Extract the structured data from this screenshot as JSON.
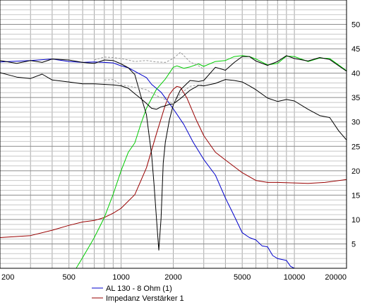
{
  "chart_data": {
    "type": "line",
    "xscale": "log",
    "xlim": [
      200,
      20000
    ],
    "ylim": [
      0,
      55
    ],
    "grid": true,
    "legend_position": "bottom-center",
    "x_tick_labels": [
      "200",
      "500",
      "1000",
      "2000",
      "5000",
      "10000",
      "20000"
    ],
    "x_tick_values": [
      200,
      500,
      1000,
      2000,
      5000,
      10000,
      20000
    ],
    "y_tick_labels": [
      "5",
      "10",
      "15",
      "20",
      "25",
      "30",
      "35",
      "40",
      "45",
      "50"
    ],
    "y_tick_values": [
      5,
      10,
      15,
      20,
      25,
      30,
      35,
      40,
      45,
      50
    ],
    "series": [
      {
        "name": "AL 130 - 8 Ohm (1)",
        "color": "#0000cc",
        "x": [
          200,
          300,
          400,
          500,
          600,
          700,
          800,
          900,
          1000,
          1100,
          1200,
          1300,
          1400,
          1500,
          1700,
          2000,
          2300,
          2600,
          3000,
          3500,
          4000,
          4500,
          5000,
          5500,
          6000,
          6500,
          7000,
          7500,
          8000,
          9000,
          9500,
          10000,
          12000,
          15000,
          20000
        ],
        "values": [
          42.3,
          42.6,
          42.9,
          42.4,
          42.2,
          42.3,
          42.2,
          42.1,
          41.5,
          41.1,
          40.4,
          39.7,
          39.1,
          37.7,
          36.1,
          32.7,
          29.5,
          25.9,
          22.3,
          19.1,
          14.4,
          10.7,
          7.3,
          6.3,
          5.8,
          4.6,
          4.4,
          2.6,
          2.0,
          1.6,
          0.4,
          0.0,
          0.0,
          0.0,
          0.0
        ]
      },
      {
        "name": "Impedanz Verstärker 1",
        "color": "#990000",
        "x": [
          200,
          300,
          400,
          500,
          600,
          700,
          800,
          900,
          1000,
          1200,
          1400,
          1600,
          1800,
          1900,
          2000,
          2100,
          2200,
          2400,
          2700,
          3000,
          3500,
          4000,
          5000,
          6000,
          7000,
          8000,
          10000,
          12000,
          15000,
          20000
        ],
        "values": [
          6.3,
          6.7,
          7.8,
          8.8,
          9.5,
          9.8,
          10.4,
          11.3,
          12.3,
          15.1,
          20.6,
          27.6,
          33.5,
          35.6,
          36.7,
          37.3,
          37.1,
          34.9,
          30.6,
          27.2,
          23.8,
          22.2,
          19.6,
          18.0,
          17.6,
          17.6,
          17.5,
          17.4,
          17.6,
          18.2
        ]
      },
      {
        "name": "",
        "color": "#00cc00",
        "x": [
          200,
          550,
          600,
          700,
          800,
          900,
          1000,
          1100,
          1200,
          1300,
          1400,
          1600,
          1800,
          2000,
          2100,
          2300,
          2500,
          2800,
          3000,
          3500,
          4000,
          4500,
          5000,
          5500,
          6000,
          7000,
          8000,
          9000,
          10000,
          12000,
          14000,
          16000,
          20000
        ],
        "values": [
          0.0,
          0.0,
          2.2,
          6.3,
          10.4,
          15.2,
          20.0,
          23.8,
          25.7,
          29.6,
          32.8,
          36.7,
          38.8,
          41.2,
          41.5,
          41.0,
          41.3,
          41.9,
          41.4,
          42.4,
          42.6,
          43.4,
          43.6,
          43.4,
          42.9,
          41.7,
          42.0,
          43.5,
          43.4,
          42.4,
          43.1,
          43.0,
          40.5
        ]
      },
      {
        "name": "",
        "color": "#000000",
        "x": [
          200,
          250,
          300,
          350,
          400,
          500,
          600,
          700,
          800,
          900,
          1000,
          1100,
          1200,
          1300,
          1400,
          1450,
          1500,
          1550,
          1600,
          1650,
          1700,
          1750,
          1800,
          1900,
          2000,
          2200,
          2500,
          2800,
          3000,
          3500,
          4000,
          4500,
          5000,
          5500,
          6000,
          7000,
          8000,
          9000,
          10000,
          12000,
          14000,
          16000,
          20000
        ],
        "values": [
          42.6,
          42.0,
          42.6,
          42.2,
          42.9,
          42.7,
          42.2,
          42.0,
          42.7,
          42.6,
          41.9,
          41.1,
          39.7,
          35.3,
          31.5,
          27.3,
          23.3,
          17.1,
          10.2,
          3.7,
          10.2,
          21.6,
          25.9,
          30.4,
          33.5,
          36.6,
          38.5,
          38.3,
          38.5,
          41.2,
          40.6,
          42.2,
          43.4,
          43.4,
          42.5,
          41.6,
          42.4,
          43.6,
          43.0,
          42.5,
          43.2,
          42.8,
          40.4
        ]
      },
      {
        "name": "",
        "color": "#000000",
        "x": [
          200,
          250,
          300,
          350,
          400,
          500,
          600,
          700,
          800,
          900,
          1000,
          1100,
          1200,
          1300,
          1400,
          1500,
          1600,
          1700,
          1800,
          1900,
          2000,
          2200,
          2500,
          2800,
          3000,
          3500,
          4000,
          4500,
          5000,
          5500,
          6000,
          7000,
          8000,
          9000,
          10000,
          12000,
          14000,
          16000,
          18000,
          20000
        ],
        "values": [
          40.1,
          39.2,
          38.9,
          39.8,
          38.6,
          38.2,
          37.8,
          37.8,
          37.7,
          37.6,
          37.4,
          36.9,
          35.8,
          34.8,
          33.8,
          32.8,
          32.6,
          33.1,
          33.3,
          33.6,
          33.7,
          34.8,
          36.5,
          37.5,
          37.4,
          37.9,
          38.7,
          38.5,
          38.2,
          37.4,
          36.6,
          34.9,
          34.2,
          34.6,
          34.3,
          32.6,
          31.3,
          30.9,
          28.2,
          26.3
        ]
      },
      {
        "name": "",
        "color": "#999999",
        "dashed": true,
        "x": [
          700,
          800,
          900,
          1000,
          1200,
          1400,
          1600,
          1800,
          2000,
          2200,
          2500,
          2800,
          3000
        ],
        "values": [
          42.7,
          43.3,
          43.2,
          43.0,
          42.4,
          42.6,
          42.3,
          42.2,
          43.0,
          44.3,
          42.3,
          41.5,
          40.8
        ]
      },
      {
        "name": "",
        "color": "#999999",
        "dashed": true,
        "x": [
          800,
          900,
          1000,
          1200,
          1400,
          1600,
          1800,
          2000,
          2200,
          2500,
          2800,
          3000
        ],
        "values": [
          38.6,
          38.7,
          37.6,
          37.1,
          36.6,
          35.4,
          34.6,
          33.7,
          35.8,
          37.3,
          37.6,
          37.6
        ]
      }
    ]
  }
}
